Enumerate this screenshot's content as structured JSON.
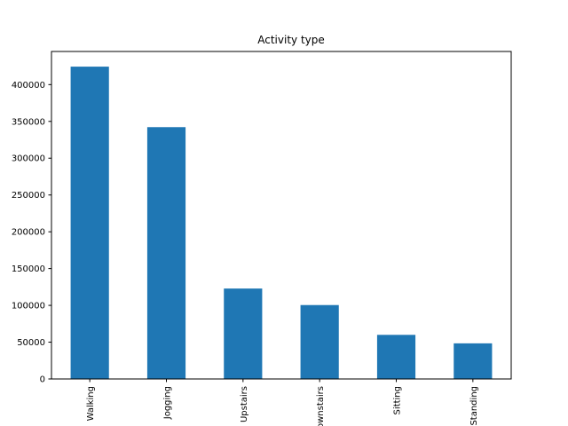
{
  "chart_data": {
    "type": "bar",
    "title": "Activity type",
    "xlabel": "",
    "ylabel": "",
    "categories": [
      "Walking",
      "Jogging",
      "Upstairs",
      "Downstairs",
      "Sitting",
      "Standing"
    ],
    "values": [
      424400,
      342177,
      122869,
      100427,
      59939,
      48395
    ],
    "ylim": [
      0,
      445000
    ],
    "yticks": [
      0,
      50000,
      100000,
      150000,
      200000,
      250000,
      300000,
      350000,
      400000
    ],
    "ytick_labels": [
      "0",
      "50000",
      "100000",
      "150000",
      "200000",
      "250000",
      "300000",
      "350000",
      "400000"
    ],
    "grid": false,
    "legend": "none",
    "colors": {
      "bar": "#1f77b4",
      "axes": "#000000"
    }
  }
}
